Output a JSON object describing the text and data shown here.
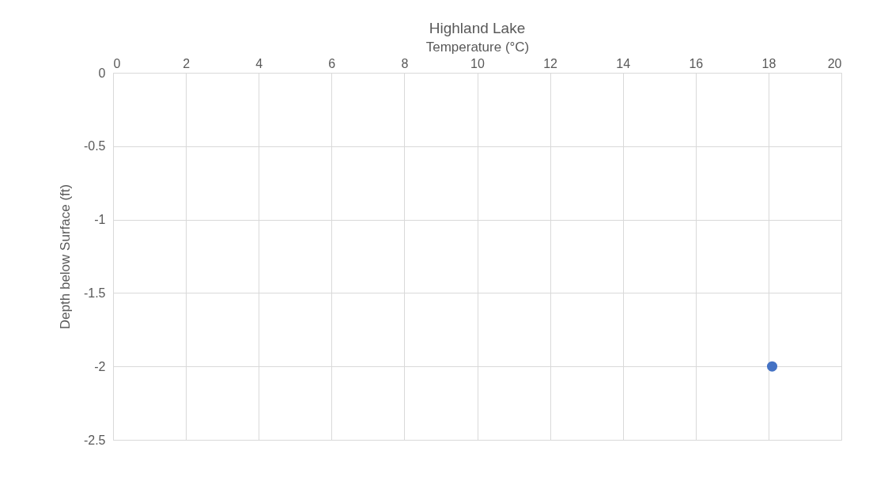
{
  "chart_data": {
    "type": "scatter",
    "title": "Highland Lake",
    "xlabel": "Temperature (°C)",
    "ylabel": "Depth below Surface (ft)",
    "x": [
      18.1
    ],
    "series": [
      {
        "color": "#4472c4",
        "values": [
          -2
        ]
      }
    ],
    "xlim": [
      0,
      20
    ],
    "xticks": [
      0,
      2,
      4,
      6,
      8,
      10,
      12,
      14,
      16,
      18,
      20
    ],
    "ylim": [
      -2.5,
      0
    ],
    "yticks": [
      0,
      -0.5,
      -1,
      -1.5,
      -2,
      -2.5
    ],
    "grid": true,
    "marker": "circle"
  }
}
